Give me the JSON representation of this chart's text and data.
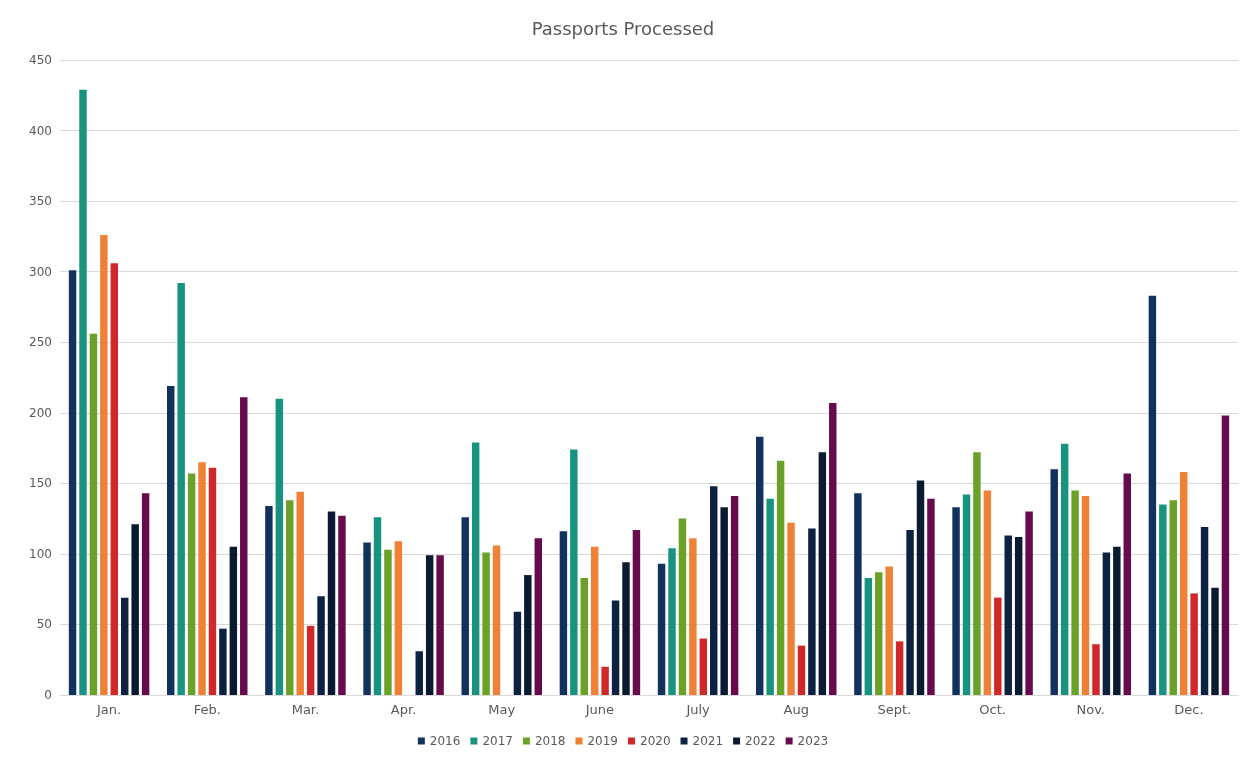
{
  "chart_data": {
    "type": "bar",
    "title": "Passports Processed",
    "categories": [
      "Jan.",
      "Feb.",
      "Mar.",
      "Apr.",
      "May",
      "June",
      "July",
      "Aug",
      "Sept.",
      "Oct.",
      "Nov.",
      "Dec."
    ],
    "series": [
      {
        "name": "2016",
        "color": "#12325e",
        "values": [
          301,
          219,
          134,
          108,
          126,
          116,
          93,
          183,
          143,
          133,
          160,
          283
        ]
      },
      {
        "name": "2017",
        "color": "#17937f",
        "values": [
          429,
          292,
          210,
          126,
          179,
          174,
          104,
          139,
          83,
          142,
          178,
          135
        ]
      },
      {
        "name": "2018",
        "color": "#6aa127",
        "values": [
          256,
          157,
          138,
          103,
          101,
          83,
          125,
          166,
          87,
          172,
          145,
          138
        ]
      },
      {
        "name": "2019",
        "color": "#ee8135",
        "values": [
          326,
          165,
          144,
          109,
          106,
          105,
          111,
          122,
          91,
          145,
          141,
          158
        ]
      },
      {
        "name": "2020",
        "color": "#d0282a",
        "values": [
          306,
          161,
          49,
          null,
          null,
          20,
          40,
          35,
          38,
          69,
          36,
          72
        ]
      },
      {
        "name": "2021",
        "color": "#0d2240",
        "values": [
          69,
          47,
          70,
          31,
          59,
          67,
          148,
          118,
          117,
          113,
          101,
          119
        ]
      },
      {
        "name": "2022",
        "color": "#0a1a30",
        "values": [
          121,
          105,
          130,
          99,
          85,
          94,
          133,
          172,
          152,
          112,
          105,
          76
        ]
      },
      {
        "name": "2023",
        "color": "#680a4e",
        "values": [
          143,
          211,
          127,
          99,
          111,
          117,
          141,
          207,
          139,
          130,
          157,
          198
        ]
      }
    ],
    "ylim": [
      0,
      450
    ],
    "yticks": [
      0,
      50,
      100,
      150,
      200,
      250,
      300,
      350,
      400,
      450
    ],
    "grid": "y",
    "legend": "bottom"
  }
}
